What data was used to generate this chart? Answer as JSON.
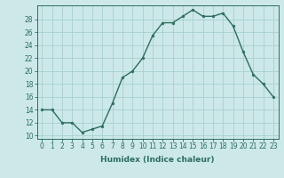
{
  "x": [
    0,
    1,
    2,
    3,
    4,
    5,
    6,
    7,
    8,
    9,
    10,
    11,
    12,
    13,
    14,
    15,
    16,
    17,
    18,
    19,
    20,
    21,
    22,
    23
  ],
  "y": [
    14,
    14,
    12,
    12,
    10.5,
    11,
    11.5,
    15,
    19,
    20,
    22,
    25.5,
    27.5,
    27.5,
    28.5,
    29.5,
    28.5,
    28.5,
    29,
    27,
    23,
    19.5,
    18,
    16
  ],
  "line_color": "#2d6e5e",
  "marker_color": "#2d6e5e",
  "bg_color": "#cce8e8",
  "grid_color": "#a8d0d0",
  "xlabel": "Humidex (Indice chaleur)",
  "ylabel": "",
  "xlim": [
    -0.5,
    23.5
  ],
  "ylim": [
    9.5,
    30.2
  ],
  "yticks": [
    10,
    12,
    14,
    16,
    18,
    20,
    22,
    24,
    26,
    28
  ],
  "xticks": [
    0,
    1,
    2,
    3,
    4,
    5,
    6,
    7,
    8,
    9,
    10,
    11,
    12,
    13,
    14,
    15,
    16,
    17,
    18,
    19,
    20,
    21,
    22,
    23
  ],
  "xlabel_fontsize": 6.5,
  "tick_fontsize": 5.5,
  "linewidth": 1.0,
  "markersize": 2.0
}
